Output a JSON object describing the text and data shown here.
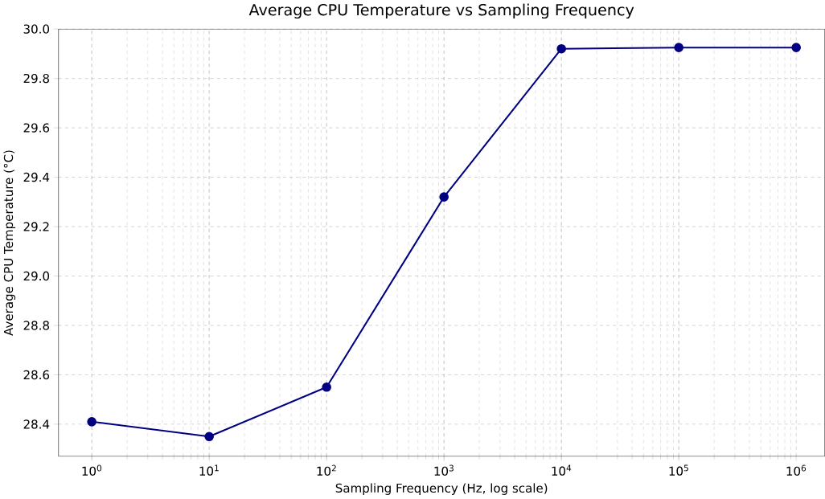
{
  "chart_data": {
    "type": "line",
    "title": "Average CPU Temperature vs Sampling Frequency",
    "xlabel": "Sampling Frequency (Hz, log scale)",
    "ylabel": "Average CPU Temperature (°C)",
    "x": [
      1,
      10,
      100,
      1000,
      10000,
      100000,
      1000000
    ],
    "series": [
      {
        "color": "#000080",
        "values": [
          28.41,
          28.35,
          28.55,
          29.32,
          29.92,
          29.925,
          29.925
        ]
      }
    ],
    "log": "x",
    "grid": true,
    "marker": "circle",
    "line_style": "solid",
    "xlim": [
      0.52,
      1750000
    ],
    "ylim": [
      28.27,
      30.0
    ],
    "xticks": [
      {
        "value": 1,
        "label": "10$^{0}$"
      },
      {
        "value": 10,
        "label": "10$^{1}$"
      },
      {
        "value": 100,
        "label": "10$^{2}$"
      },
      {
        "value": 1000,
        "label": "10$^{3}$"
      },
      {
        "value": 10000,
        "label": "10$^{4}$"
      },
      {
        "value": 100000,
        "label": "10$^{5}$"
      },
      {
        "value": 1000000,
        "label": "10$^{6}$"
      }
    ],
    "yticks": [
      28.4,
      28.6,
      28.8,
      {
        "value": 29.0,
        "label": "29.0"
      },
      29.2,
      29.4,
      29.6,
      29.8,
      {
        "value": 30.0,
        "label": "30.0"
      }
    ]
  }
}
